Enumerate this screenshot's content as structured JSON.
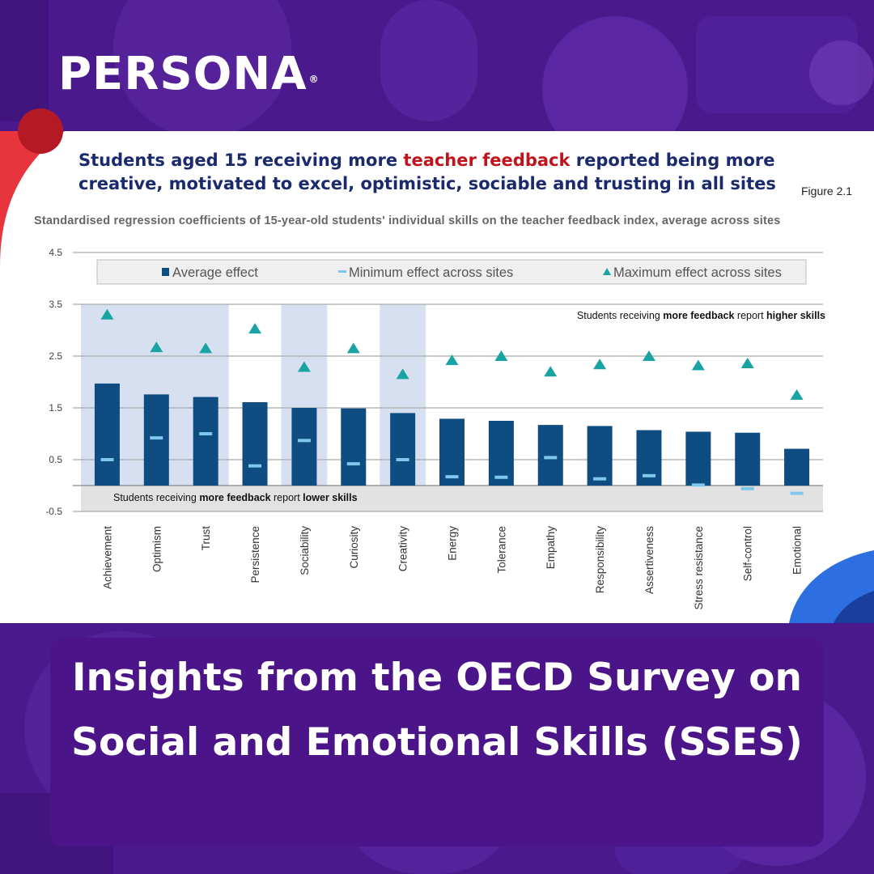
{
  "brand": {
    "logo_text": "PERSONA",
    "logo_mark": "®",
    "bg_color": "#4a1a8c",
    "accent_red": "#e8343c",
    "accent_blue": "#2d6ee0"
  },
  "figure": {
    "title_pre": "Students aged 15 receiving more ",
    "title_highlight": "teacher feedback",
    "title_post": " reported being more creative, motivated to excel, optimistic, sociable and trusting in all sites",
    "figure_label": "Figure 2.1",
    "subtitle": "Standardised regression coefficients of 15-year-old students' individual skills on the teacher feedback index, average across sites"
  },
  "chart_data": {
    "type": "bar",
    "title": "Students aged 15 receiving more teacher feedback reported being more creative, motivated to excel, optimistic, sociable and trusting in all sites",
    "ylim": [
      -0.5,
      4.5
    ],
    "yticks": [
      "4.5",
      "3.5",
      "2.5",
      "1.5",
      "0.5",
      "-0.5"
    ],
    "grid": true,
    "legend_position": "top",
    "categories": [
      "Achievement",
      "Optimism",
      "Trust",
      "Persistence",
      "Sociability",
      "Curiosity",
      "Creativity",
      "Energy",
      "Tolerance",
      "Empathy",
      "Responsibility",
      "Assertiveness",
      "Stress resistance",
      "Self-control",
      "Emotional"
    ],
    "series": [
      {
        "name": "Average effect",
        "marker": "bar",
        "color": "#0f4c81",
        "values": [
          1.97,
          1.76,
          1.71,
          1.61,
          1.5,
          1.49,
          1.4,
          1.29,
          1.25,
          1.17,
          1.15,
          1.07,
          1.04,
          1.02,
          0.71
        ]
      },
      {
        "name": "Minimum effect across sites",
        "marker": "dash",
        "color": "#7ec8ee",
        "values": [
          0.5,
          0.92,
          1.0,
          0.38,
          0.87,
          0.42,
          0.5,
          0.17,
          0.16,
          0.54,
          0.13,
          0.19,
          0.01,
          -0.06,
          -0.15
        ]
      },
      {
        "name": "Maximum effect across sites",
        "marker": "triangle",
        "color": "#1aa3a3",
        "values": [
          3.3,
          2.67,
          2.65,
          3.03,
          2.29,
          2.65,
          2.15,
          2.42,
          2.5,
          2.2,
          2.34,
          2.5,
          2.32,
          2.36,
          1.75
        ]
      }
    ],
    "highlighted_categories": [
      "Achievement",
      "Optimism",
      "Trust",
      "Sociability",
      "Creativity"
    ],
    "annotations": {
      "upper_pre": "Students receiving ",
      "upper_bold1": "more feedback",
      "upper_mid": " report ",
      "upper_bold2": "higher skills",
      "lower_pre": "Students receiving ",
      "lower_bold1": "more feedback",
      "lower_mid": " report ",
      "lower_bold2": "lower skills"
    }
  },
  "caption": {
    "text": "Insights from the OECD Survey on Social and Emotional Skills (SSES)"
  }
}
